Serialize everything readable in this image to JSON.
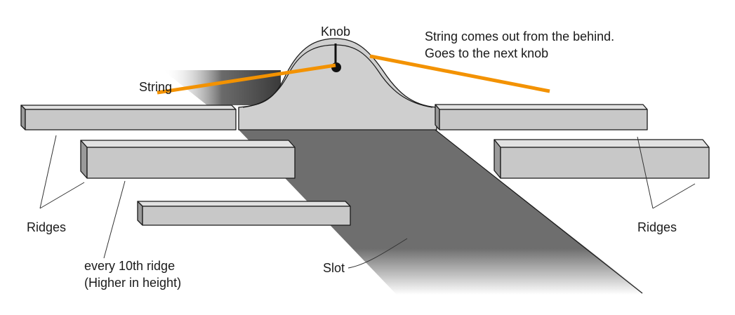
{
  "labels": {
    "knob": "Knob",
    "string": "String",
    "string_note_line1": "String comes out from the behind.",
    "string_note_line2": "Goes to the next knob",
    "ridges_left": "Ridges",
    "ridges_right": "Ridges",
    "tenth_line1": "every 10th ridge",
    "tenth_line2": "(Higher in height)",
    "slot": "Slot"
  },
  "colors": {
    "string": "#f39200",
    "ridge": "#c8c8c8",
    "slot": "#6e6e6e",
    "knob": "#cfcfcf"
  }
}
